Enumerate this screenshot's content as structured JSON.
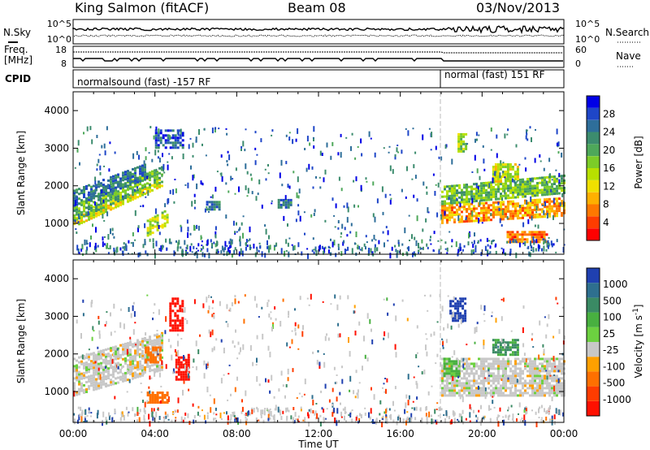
{
  "header": {
    "station": "King Salmon (fitACF)",
    "beam": "Beam 08",
    "date": "03/Nov/2013"
  },
  "params_panel": {
    "nsky_label": "N.Sky",
    "nsky_ticks": [
      "10^5",
      "10^0"
    ],
    "freq_label_line1": "Freq.",
    "freq_label_line2": "[MHz]",
    "freq_ticks": [
      "18",
      "8"
    ],
    "cpid_label": "CPID",
    "nsearch_label": "N.Search",
    "nsearch_ticks": [
      "10^5",
      "10^0"
    ],
    "nave_label": "Nave",
    "nave_ticks": [
      "60",
      "0"
    ],
    "modes": [
      {
        "name": "normalsound (fast) -157 RF",
        "start_hour": 0,
        "end_hour": 18
      },
      {
        "name": "normal (fast) 151 RF",
        "start_hour": 18,
        "end_hour": 24
      }
    ]
  },
  "colorbars": {
    "power": {
      "label": "Power [dB]",
      "ticks": [
        "28",
        "24",
        "20",
        "16",
        "12",
        "8",
        "4"
      ],
      "colors": [
        "#0000e6",
        "#1e46c8",
        "#2e6e9a",
        "#3c8c6e",
        "#4ea85a",
        "#7ccc28",
        "#b8e000",
        "#f0e000",
        "#ffb000",
        "#ff7800",
        "#ff3c00",
        "#ff0000"
      ]
    },
    "velocity": {
      "label": "Velocity [m s^-1]",
      "ticks": [
        "1000",
        "500",
        "100",
        "25",
        "-25",
        "-100",
        "-500",
        "-1000"
      ],
      "colors": [
        "#1f40b0",
        "#2e6f8f",
        "#3a8a64",
        "#48b040",
        "#6cd040",
        "#c8c8c8",
        "#ffa000",
        "#ff7000",
        "#ff3c00",
        "#ff1000"
      ]
    }
  },
  "axes": {
    "ylabel": "Slant Range [km]",
    "xlabel": "Time UT",
    "yticks": [
      "1000",
      "2000",
      "3000",
      "4000"
    ],
    "xticks": [
      "00:00",
      "04:00",
      "08:00",
      "12:00",
      "16:00",
      "20:00",
      "00:00"
    ]
  },
  "chart_data": [
    {
      "type": "heatmap",
      "title": "",
      "quantity": "Power",
      "xlabel": "Time UT",
      "ylabel": "Slant Range [km]",
      "colorbar_label": "Power [dB]",
      "x_range_hours": [
        0,
        24
      ],
      "ylim": [
        180,
        4500
      ],
      "clim": [
        0,
        30
      ],
      "features": [
        {
          "t0": 0.0,
          "t1": 4.4,
          "r0": 900,
          "r1": 1150,
          "dr": 1100,
          "value": 18
        },
        {
          "t0": 0.0,
          "t1": 4.4,
          "r0": 1100,
          "r1": 1500,
          "dr": 1050,
          "value": 12
        },
        {
          "t0": 0.0,
          "t1": 3.5,
          "r0": 1500,
          "r1": 1900,
          "dr": 700,
          "value": 7
        },
        {
          "t0": 3.6,
          "t1": 4.6,
          "r0": 700,
          "r1": 1100,
          "dr": 300,
          "value": 16
        },
        {
          "t0": 4.0,
          "t1": 5.4,
          "r0": 3000,
          "r1": 3500,
          "dr": 0,
          "value": 5
        },
        {
          "t0": 6.5,
          "t1": 7.2,
          "r0": 1350,
          "r1": 1600,
          "dr": 0,
          "value": 8
        },
        {
          "t0": 10.0,
          "t1": 10.6,
          "r0": 1400,
          "r1": 1650,
          "dr": 0,
          "value": 7
        },
        {
          "t0": 18.0,
          "t1": 24.0,
          "r0": 1000,
          "r1": 1500,
          "dr": 200,
          "value": 22
        },
        {
          "t0": 18.0,
          "t1": 24.0,
          "r0": 1500,
          "r1": 2000,
          "dr": 300,
          "value": 13
        },
        {
          "t0": 18.8,
          "t1": 19.2,
          "r0": 2900,
          "r1": 3400,
          "dr": 0,
          "value": 15
        },
        {
          "t0": 20.5,
          "t1": 21.8,
          "r0": 2100,
          "r1": 2600,
          "dr": 0,
          "value": 17
        },
        {
          "t0": 21.2,
          "t1": 23.2,
          "r0": 500,
          "r1": 800,
          "dr": 0,
          "value": 24
        }
      ]
    },
    {
      "type": "heatmap",
      "title": "",
      "quantity": "Velocity",
      "xlabel": "Time UT",
      "ylabel": "Slant Range [km]",
      "colorbar_label": "Velocity [m s^-1]",
      "x_range_hours": [
        0,
        24
      ],
      "ylim": [
        180,
        4500
      ],
      "clim": [
        -1000,
        1000
      ],
      "features": [
        {
          "t0": 0.0,
          "t1": 4.4,
          "r0": 900,
          "r1": 1900,
          "dr": 700,
          "value": 0
        },
        {
          "t0": 3.5,
          "t1": 4.3,
          "r0": 1800,
          "r1": 2200,
          "dr": 0,
          "value": -150
        },
        {
          "t0": 3.6,
          "t1": 4.6,
          "r0": 700,
          "r1": 1000,
          "dr": 0,
          "value": -200
        },
        {
          "t0": 5.0,
          "t1": 5.7,
          "r0": 1300,
          "r1": 2000,
          "dr": 0,
          "value": -700
        },
        {
          "t0": 4.7,
          "t1": 5.3,
          "r0": 2600,
          "r1": 3500,
          "dr": 0,
          "value": -600
        },
        {
          "t0": 18.0,
          "t1": 24.0,
          "r0": 900,
          "r1": 1900,
          "dr": 0,
          "value": 0
        },
        {
          "t0": 18.4,
          "t1": 19.2,
          "r0": 2900,
          "r1": 3500,
          "dr": 0,
          "value": 600
        },
        {
          "t0": 20.5,
          "t1": 21.8,
          "r0": 1950,
          "r1": 2400,
          "dr": 0,
          "value": 110
        },
        {
          "t0": 18.1,
          "t1": 18.9,
          "r0": 1400,
          "r1": 1900,
          "dr": 0,
          "value": 60
        }
      ]
    }
  ]
}
